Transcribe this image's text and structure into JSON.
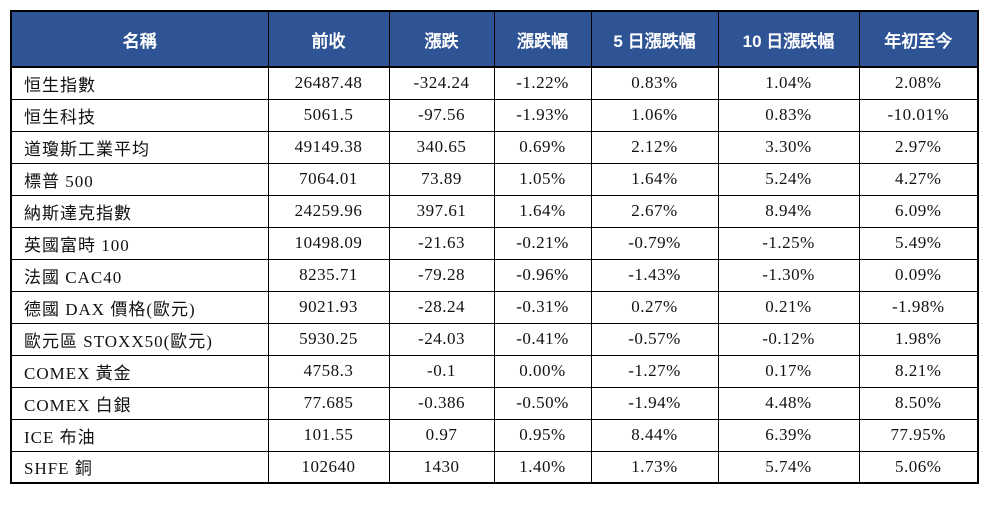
{
  "colors": {
    "header_bg": "#2F5496",
    "header_text": "#FFFFFF",
    "border": "#000000"
  },
  "table": {
    "columns": [
      {
        "key": "name",
        "label": "名稱"
      },
      {
        "key": "prev_close",
        "label": "前收"
      },
      {
        "key": "change",
        "label": "漲跌"
      },
      {
        "key": "change_pct",
        "label": "漲跌幅"
      },
      {
        "key": "change_pct_5d",
        "label": "5 日漲跌幅"
      },
      {
        "key": "change_pct_10d",
        "label": "10 日漲跌幅"
      },
      {
        "key": "ytd",
        "label": "年初至今"
      }
    ],
    "rows": [
      [
        "恒生指數",
        "26487.48",
        "-324.24",
        "-1.22%",
        "0.83%",
        "1.04%",
        "2.08%"
      ],
      [
        "恒生科技",
        "5061.5",
        "-97.56",
        "-1.93%",
        "1.06%",
        "0.83%",
        "-10.01%"
      ],
      [
        "道瓊斯工業平均",
        "49149.38",
        "340.65",
        "0.69%",
        "2.12%",
        "3.30%",
        "2.97%"
      ],
      [
        "標普 500",
        "7064.01",
        "73.89",
        "1.05%",
        "1.64%",
        "5.24%",
        "4.27%"
      ],
      [
        "納斯達克指數",
        "24259.96",
        "397.61",
        "1.64%",
        "2.67%",
        "8.94%",
        "6.09%"
      ],
      [
        "英國富時 100",
        "10498.09",
        "-21.63",
        "-0.21%",
        "-0.79%",
        "-1.25%",
        "5.49%"
      ],
      [
        "法國 CAC40",
        "8235.71",
        "-79.28",
        "-0.96%",
        "-1.43%",
        "-1.30%",
        "0.09%"
      ],
      [
        "德國 DAX 價格(歐元)",
        "9021.93",
        "-28.24",
        "-0.31%",
        "0.27%",
        "0.21%",
        "-1.98%"
      ],
      [
        "歐元區 STOXX50(歐元)",
        "5930.25",
        "-24.03",
        "-0.41%",
        "-0.57%",
        "-0.12%",
        "1.98%"
      ],
      [
        "COMEX 黃金",
        "4758.3",
        "-0.1",
        "0.00%",
        "-1.27%",
        "0.17%",
        "8.21%"
      ],
      [
        "COMEX 白銀",
        "77.685",
        "-0.386",
        "-0.50%",
        "-1.94%",
        "4.48%",
        "8.50%"
      ],
      [
        "ICE 布油",
        "101.55",
        "0.97",
        "0.95%",
        "8.44%",
        "6.39%",
        "77.95%"
      ],
      [
        "SHFE 銅",
        "102640",
        "1430",
        "1.40%",
        "1.73%",
        "5.74%",
        "5.06%"
      ]
    ]
  },
  "chart_data": {
    "type": "table",
    "title": "",
    "columns": [
      "名稱",
      "前收",
      "漲跌",
      "漲跌幅",
      "5 日漲跌幅",
      "10 日漲跌幅",
      "年初至今"
    ],
    "rows": [
      [
        "恒生指數",
        26487.48,
        -324.24,
        -1.22,
        0.83,
        1.04,
        2.08
      ],
      [
        "恒生科技",
        5061.5,
        -97.56,
        -1.93,
        1.06,
        0.83,
        -10.01
      ],
      [
        "道瓊斯工業平均",
        49149.38,
        340.65,
        0.69,
        2.12,
        3.3,
        2.97
      ],
      [
        "標普 500",
        7064.01,
        73.89,
        1.05,
        1.64,
        5.24,
        4.27
      ],
      [
        "納斯達克指數",
        24259.96,
        397.61,
        1.64,
        2.67,
        8.94,
        6.09
      ],
      [
        "英國富時 100",
        10498.09,
        -21.63,
        -0.21,
        -0.79,
        -1.25,
        5.49
      ],
      [
        "法國 CAC40",
        8235.71,
        -79.28,
        -0.96,
        -1.43,
        -1.3,
        0.09
      ],
      [
        "德國 DAX 價格(歐元)",
        9021.93,
        -28.24,
        -0.31,
        0.27,
        0.21,
        -1.98
      ],
      [
        "歐元區 STOXX50(歐元)",
        5930.25,
        -24.03,
        -0.41,
        -0.57,
        -0.12,
        1.98
      ],
      [
        "COMEX 黃金",
        4758.3,
        -0.1,
        0.0,
        -1.27,
        0.17,
        8.21
      ],
      [
        "COMEX 白銀",
        77.685,
        -0.386,
        -0.5,
        -1.94,
        4.48,
        8.5
      ],
      [
        "ICE 布油",
        101.55,
        0.97,
        0.95,
        8.44,
        6.39,
        77.95
      ],
      [
        "SHFE 銅",
        102640,
        1430,
        1.4,
        1.73,
        5.74,
        5.06
      ]
    ],
    "percent_columns": [
      "漲跌幅",
      "5 日漲跌幅",
      "10 日漲跌幅",
      "年初至今"
    ]
  }
}
